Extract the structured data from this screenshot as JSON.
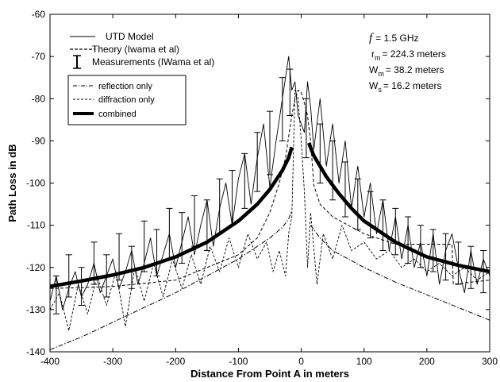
{
  "chart_data": {
    "type": "line",
    "title": "",
    "xlabel": "Distance From Point A in meters",
    "ylabel": "Path Loss in dB",
    "xlim": [
      -400,
      300
    ],
    "ylim": [
      -140,
      -60
    ],
    "xticks": [
      -400,
      -300,
      -200,
      -100,
      0,
      100,
      200,
      300
    ],
    "yticks": [
      -60,
      -70,
      -80,
      -90,
      -100,
      -110,
      -120,
      -130,
      -140
    ],
    "xtick_labels": [
      "-400",
      "-300",
      "-200",
      "-100",
      "0",
      "100",
      "200",
      "300"
    ],
    "ytick_labels": [
      "-60",
      "-70",
      "-80",
      "-90",
      "-100",
      "-110",
      "-120",
      "-130",
      "-140"
    ],
    "grid": false,
    "legend_top": {
      "position": "top-left",
      "entries": [
        {
          "label": "UTD Model",
          "style": "solid-thin"
        },
        {
          "label": "Theory (Iwama et al)",
          "style": "dashed"
        },
        {
          "label": "Measurements (IWama et al)",
          "style": "errorbar"
        }
      ]
    },
    "legend_inner": {
      "position": "top-left",
      "entries": [
        {
          "label": "reflection only",
          "style": "dashdot"
        },
        {
          "label": "diffraction only",
          "style": "dashed"
        },
        {
          "label": "combined",
          "style": "solid-thick"
        }
      ]
    },
    "parameters": {
      "f_symbol": "f",
      "f_value": "=  1.5 GHz",
      "rm_symbol": "r",
      "rm_sub": "m",
      "rm_value": "=  224.3 meters",
      "wm_symbol": "W",
      "wm_sub": "m",
      "wm_value": "= 38.2 meters",
      "ws_symbol": "W",
      "ws_sub": "s",
      "ws_value": "=  16.2 meters"
    },
    "series": [
      {
        "name": "combined",
        "style": "solid-thick",
        "segments": [
          {
            "x": [
              -400,
              -350,
              -300,
              -250,
              -200,
              -150,
              -100,
              -70,
              -50,
              -30,
              -20,
              -15
            ],
            "y": [
              -124.5,
              -123.2,
              -121.8,
              -120.0,
              -117.5,
              -114.0,
              -109.0,
              -105.0,
              -101.5,
              -97.0,
              -94.0,
              -91.5
            ]
          },
          {
            "x": [
              12,
              20,
              40,
              60,
              80,
              100,
              150,
              200,
              250,
              300
            ],
            "y": [
              -90.5,
              -93.5,
              -98.5,
              -102.5,
              -106.0,
              -109.0,
              -114.0,
              -117.5,
              -119.5,
              -121.0
            ]
          }
        ]
      },
      {
        "name": "reflection only",
        "style": "dashdot",
        "segments": [
          {
            "x": [
              -400,
              -350,
              -300,
              -250,
              -200,
              -150,
              -100,
              -70,
              -50,
              -30,
              -20,
              -15
            ],
            "y": [
              -139.5,
              -136.5,
              -133.0,
              -129.5,
              -126.0,
              -122.0,
              -118.0,
              -115.0,
              -113.0,
              -110.5,
              -108.5,
              -106.5
            ]
          },
          {
            "x": [
              15,
              30,
              50,
              100,
              150,
              200,
              250,
              300
            ],
            "y": [
              -110.0,
              -113.0,
              -116.0,
              -120.0,
              -123.5,
              -126.5,
              -129.5,
              -132.5
            ]
          }
        ]
      },
      {
        "name": "diffraction only",
        "style": "dashed",
        "segments": [
          {
            "x": [
              -400,
              -300,
              -200,
              -150,
              -100,
              -70,
              -50,
              -35,
              -25,
              -20,
              -15,
              -10,
              -5,
              0,
              5,
              10,
              15,
              20,
              30,
              50,
              100,
              150,
              200,
              240,
              242,
              270,
              300
            ],
            "y": [
              -125.0,
              -124.5,
              -123.0,
              -120.0,
              -117.0,
              -113.0,
              -107.0,
              -100.0,
              -94.0,
              -89.0,
              -84.0,
              -80.0,
              -78.0,
              -78.5,
              -81.0,
              -84.0,
              -90.0,
              -100.5,
              -105.0,
              -108.0,
              -112.0,
              -114.5,
              -114.5,
              -114.5,
              -124.0,
              -123.5,
              -123.0
            ]
          }
        ]
      },
      {
        "name": "UTD Model",
        "style": "solid-thin",
        "segments": [
          {
            "x": [
              -400,
              -390,
              -380,
              -370,
              -360,
              -350,
              -340,
              -330,
              -320,
              -310,
              -300,
              -290,
              -280,
              -270,
              -260,
              -250,
              -240,
              -230,
              -220,
              -210,
              -200,
              -190,
              -180,
              -170,
              -160,
              -150,
              -140,
              -130,
              -120,
              -110,
              -100,
              -90,
              -80,
              -70,
              -60,
              -50,
              -40,
              -30,
              -20,
              -15,
              -10,
              -5,
              0,
              5,
              10,
              15,
              20,
              30,
              40,
              50,
              60,
              70,
              80,
              90,
              100,
              110,
              120,
              130,
              140,
              150,
              160,
              170,
              180,
              190,
              200,
              210,
              220,
              230,
              240,
              250,
              260,
              270,
              280,
              290,
              300
            ],
            "y": [
              -128,
              -122,
              -130,
              -125,
              -121,
              -127,
              -124,
              -119,
              -126,
              -122,
              -118,
              -125,
              -121,
              -116,
              -124,
              -119,
              -113,
              -122,
              -117,
              -112,
              -120,
              -114,
              -108,
              -117,
              -110,
              -104,
              -115,
              -106,
              -100,
              -110,
              -99,
              -93,
              -105,
              -94,
              -86,
              -101,
              -90,
              -80,
              -70,
              -78,
              -76,
              -84,
              -86,
              -88,
              -76,
              -82,
              -92,
              -80,
              -96,
              -86,
              -100,
              -90,
              -106,
              -96,
              -108,
              -100,
              -112,
              -104,
              -116,
              -108,
              -118,
              -110,
              -120,
              -114,
              -122,
              -112,
              -124,
              -116,
              -112,
              -120,
              -126,
              -116,
              -124,
              -118,
              -122
            ]
          }
        ]
      },
      {
        "name": "Theory (Iwama et al)",
        "style": "dashed-thin",
        "segments": [
          {
            "x": [
              -400,
              -385,
              -370,
              -355,
              -340,
              -325,
              -310,
              -295,
              -280,
              -265,
              -250,
              -235,
              -220,
              -205,
              -190,
              -175,
              -160,
              -145,
              -130,
              -115,
              -100,
              -85,
              -70,
              -55,
              -45,
              -35,
              -25,
              -20,
              -15,
              -10,
              -5,
              0,
              5,
              10,
              15,
              25,
              35,
              50,
              65,
              80,
              100,
              120,
              140,
              160,
              180,
              200,
              220,
              240,
              260,
              280,
              300
            ],
            "y": [
              -130,
              -126,
              -135,
              -124,
              -131,
              -122,
              -129,
              -121,
              -134,
              -120,
              -128,
              -119,
              -127,
              -118,
              -125,
              -117,
              -124,
              -115,
              -121,
              -113,
              -120,
              -112,
              -118,
              -114,
              -121,
              -116,
              -122,
              -112,
              -108,
              -78,
              -80,
              -90,
              -102,
              -120,
              -107,
              -124,
              -112,
              -118,
              -110,
              -116,
              -114,
              -118,
              -116,
              -120,
              -118,
              -121,
              -119,
              -122,
              -120,
              -123,
              -121
            ]
          }
        ]
      }
    ],
    "measurements": {
      "name": "Measurements (IWama et al)",
      "style": "errorbar",
      "points": [
        {
          "x": -390,
          "low": -131,
          "high": -122
        },
        {
          "x": -370,
          "low": -127,
          "high": -117
        },
        {
          "x": -350,
          "low": -129,
          "high": -120
        },
        {
          "x": -330,
          "low": -124,
          "high": -114
        },
        {
          "x": -310,
          "low": -127,
          "high": -117
        },
        {
          "x": -290,
          "low": -123,
          "high": -112
        },
        {
          "x": -270,
          "low": -125,
          "high": -115
        },
        {
          "x": -250,
          "low": -121,
          "high": -109
        },
        {
          "x": -230,
          "low": -122,
          "high": -111
        },
        {
          "x": -210,
          "low": -118,
          "high": -106
        },
        {
          "x": -190,
          "low": -119,
          "high": -107
        },
        {
          "x": -170,
          "low": -115,
          "high": -103
        },
        {
          "x": -150,
          "low": -116,
          "high": -104
        },
        {
          "x": -130,
          "low": -112,
          "high": -99
        },
        {
          "x": -110,
          "low": -110,
          "high": -97
        },
        {
          "x": -90,
          "low": -106,
          "high": -93
        },
        {
          "x": -70,
          "low": -102,
          "high": -88
        },
        {
          "x": -50,
          "low": -98,
          "high": -83
        },
        {
          "x": -30,
          "low": -90,
          "high": -75
        },
        {
          "x": -18,
          "low": -84,
          "high": -73
        },
        {
          "x": 8,
          "low": -94,
          "high": -80
        },
        {
          "x": 30,
          "low": -100,
          "high": -86
        },
        {
          "x": 50,
          "low": -104,
          "high": -90
        },
        {
          "x": 70,
          "low": -108,
          "high": -95
        },
        {
          "x": 90,
          "low": -111,
          "high": -99
        },
        {
          "x": 110,
          "low": -113,
          "high": -102
        },
        {
          "x": 130,
          "low": -116,
          "high": -104
        },
        {
          "x": 150,
          "low": -117,
          "high": -106
        },
        {
          "x": 170,
          "low": -119,
          "high": -108
        },
        {
          "x": 190,
          "low": -120,
          "high": -110
        },
        {
          "x": 210,
          "low": -121,
          "high": -111
        },
        {
          "x": 230,
          "low": -123,
          "high": -112
        },
        {
          "x": 250,
          "low": -124,
          "high": -114
        },
        {
          "x": 270,
          "low": -125,
          "high": -115
        },
        {
          "x": 290,
          "low": -126,
          "high": -116
        }
      ]
    }
  }
}
